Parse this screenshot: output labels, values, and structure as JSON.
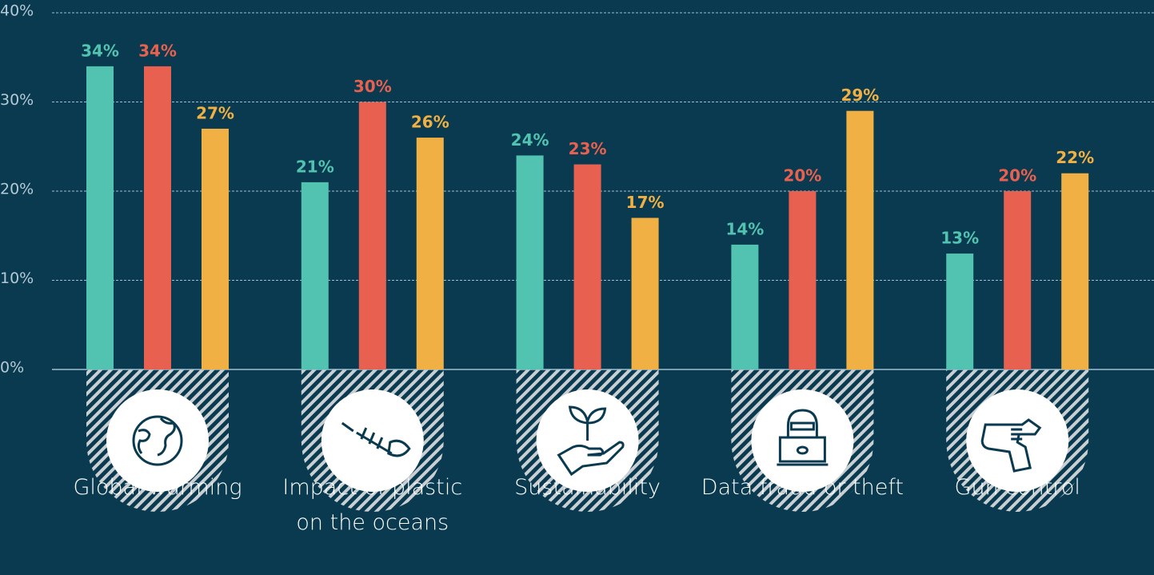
{
  "chart_data": {
    "type": "bar",
    "categories": [
      "Global warming",
      "Impact of plastic on the oceans",
      "Sustainability",
      "Data fraud or theft",
      "Gun control"
    ],
    "series": [
      {
        "color": "#52c3b0",
        "values": [
          34,
          21,
          24,
          14,
          13
        ],
        "value_labels": [
          "34%",
          "21%",
          "24%",
          "14%",
          "13%"
        ]
      },
      {
        "color": "#e86150",
        "values": [
          34,
          30,
          23,
          20,
          20
        ],
        "value_labels": [
          "34%",
          "30%",
          "23%",
          "20%",
          "20%"
        ]
      },
      {
        "color": "#f0b044",
        "values": [
          27,
          26,
          17,
          29,
          22
        ],
        "value_labels": [
          "27%",
          "26%",
          "17%",
          "29%",
          "22%"
        ]
      }
    ],
    "ylim": [
      0,
      40
    ],
    "yticks": [
      {
        "value": 0,
        "label": "0%"
      },
      {
        "value": 10,
        "label": "10%"
      },
      {
        "value": 20,
        "label": "20%"
      },
      {
        "value": 30,
        "label": "30%"
      },
      {
        "value": 40,
        "label": "40%"
      }
    ],
    "grid": true
  }
}
